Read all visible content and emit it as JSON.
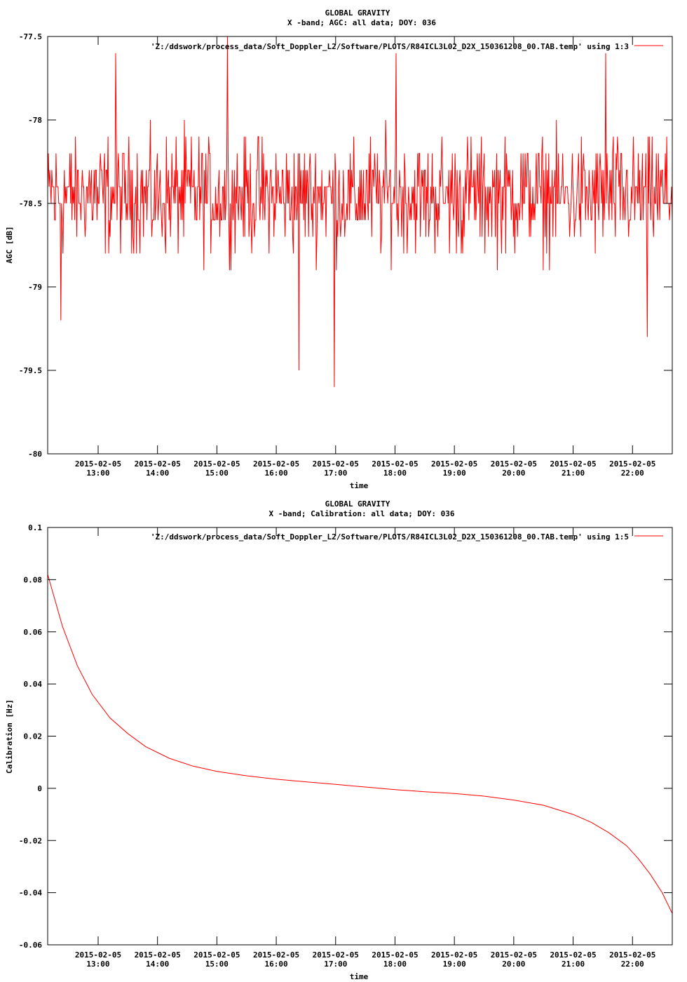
{
  "colors": {
    "series": "#ff0000",
    "axes": "#000000",
    "background": "#ffffff"
  },
  "chart_data": [
    {
      "type": "line",
      "title": "GLOBAL GRAVITY",
      "subtitle": "X -band; AGC: all data; DOY: 036",
      "xlabel": "time",
      "ylabel": "AGC [dB]",
      "xlim": [
        12.15,
        22.67
      ],
      "ylim": [
        -80,
        -77.5
      ],
      "x_ticks": [
        {
          "value": 13,
          "date": "2015-02-05",
          "time": "13:00"
        },
        {
          "value": 14,
          "date": "2015-02-05",
          "time": "14:00"
        },
        {
          "value": 15,
          "date": "2015-02-05",
          "time": "15:00"
        },
        {
          "value": 16,
          "date": "2015-02-05",
          "time": "16:00"
        },
        {
          "value": 17,
          "date": "2015-02-05",
          "time": "17:00"
        },
        {
          "value": 18,
          "date": "2015-02-05",
          "time": "18:00"
        },
        {
          "value": 19,
          "date": "2015-02-05",
          "time": "19:00"
        },
        {
          "value": 20,
          "date": "2015-02-05",
          "time": "20:00"
        },
        {
          "value": 21,
          "date": "2015-02-05",
          "time": "21:00"
        },
        {
          "value": 22,
          "date": "2015-02-05",
          "time": "22:00"
        }
      ],
      "y_ticks": [
        {
          "value": -77.5,
          "label": "-77.5"
        },
        {
          "value": -78,
          "label": "-78"
        },
        {
          "value": -78.5,
          "label": "-78.5"
        },
        {
          "value": -79,
          "label": "-79"
        },
        {
          "value": -79.5,
          "label": "-79.5"
        },
        {
          "value": -80,
          "label": "-80"
        }
      ],
      "grid": false,
      "legend_position": "top-right",
      "series": [
        {
          "name": "'Z:/ddswork/process_data/Soft_Doppler_L2/Software/PLOTS/R84ICL3L02_D2X_150361208_00.TAB.temp' using 1:3",
          "color": "#ff0000",
          "noise": {
            "center": -78.45,
            "amplitude": 0.5,
            "step": 0.1,
            "density": 900
          },
          "spikes": [
            {
              "x": 16.38,
              "y": -79.5
            },
            {
              "x": 16.98,
              "y": -79.6
            },
            {
              "x": 15.18,
              "y": -77.5
            },
            {
              "x": 12.37,
              "y": -79.2
            },
            {
              "x": 18.02,
              "y": -77.6
            },
            {
              "x": 21.55,
              "y": -77.6
            },
            {
              "x": 13.3,
              "y": -77.6
            },
            {
              "x": 22.25,
              "y": -79.3
            }
          ]
        }
      ]
    },
    {
      "type": "line",
      "title": "GLOBAL GRAVITY",
      "subtitle": "X -band; Calibration: all data; DOY: 036",
      "xlabel": "time",
      "ylabel": "Calibration [Hz]",
      "xlim": [
        12.15,
        22.67
      ],
      "ylim": [
        -0.06,
        0.1
      ],
      "x_ticks": [
        {
          "value": 13,
          "date": "2015-02-05",
          "time": "13:00"
        },
        {
          "value": 14,
          "date": "2015-02-05",
          "time": "14:00"
        },
        {
          "value": 15,
          "date": "2015-02-05",
          "time": "15:00"
        },
        {
          "value": 16,
          "date": "2015-02-05",
          "time": "16:00"
        },
        {
          "value": 17,
          "date": "2015-02-05",
          "time": "17:00"
        },
        {
          "value": 18,
          "date": "2015-02-05",
          "time": "18:00"
        },
        {
          "value": 19,
          "date": "2015-02-05",
          "time": "19:00"
        },
        {
          "value": 20,
          "date": "2015-02-05",
          "time": "20:00"
        },
        {
          "value": 21,
          "date": "2015-02-05",
          "time": "21:00"
        },
        {
          "value": 22,
          "date": "2015-02-05",
          "time": "22:00"
        }
      ],
      "y_ticks": [
        {
          "value": 0.1,
          "label": "0.1"
        },
        {
          "value": 0.08,
          "label": "0.08"
        },
        {
          "value": 0.06,
          "label": "0.06"
        },
        {
          "value": 0.04,
          "label": "0.04"
        },
        {
          "value": 0.02,
          "label": "0.02"
        },
        {
          "value": 0,
          "label": "0"
        },
        {
          "value": -0.02,
          "label": "-0.02"
        },
        {
          "value": -0.04,
          "label": "-0.04"
        },
        {
          "value": -0.06,
          "label": "-0.06"
        }
      ],
      "grid": false,
      "legend_position": "top-right",
      "series": [
        {
          "name": "'Z:/ddswork/process_data/Soft_Doppler_L2/Software/PLOTS/R84ICL3L02_D2X_150361208_00.TAB.temp' using 1:5",
          "color": "#ff0000",
          "x": [
            12.15,
            12.4,
            12.65,
            12.9,
            13.2,
            13.5,
            13.8,
            14.2,
            14.6,
            15.0,
            15.5,
            16.0,
            16.5,
            17.0,
            17.5,
            18.0,
            18.5,
            19.0,
            19.5,
            20.0,
            20.5,
            21.0,
            21.3,
            21.6,
            21.9,
            22.1,
            22.3,
            22.5,
            22.67
          ],
          "y": [
            0.082,
            0.062,
            0.047,
            0.036,
            0.027,
            0.021,
            0.016,
            0.0115,
            0.0085,
            0.0065,
            0.0048,
            0.0035,
            0.0025,
            0.0015,
            0.0005,
            -0.0005,
            -0.0013,
            -0.002,
            -0.003,
            -0.0045,
            -0.0065,
            -0.01,
            -0.013,
            -0.017,
            -0.022,
            -0.027,
            -0.033,
            -0.04,
            -0.048
          ]
        }
      ]
    }
  ]
}
